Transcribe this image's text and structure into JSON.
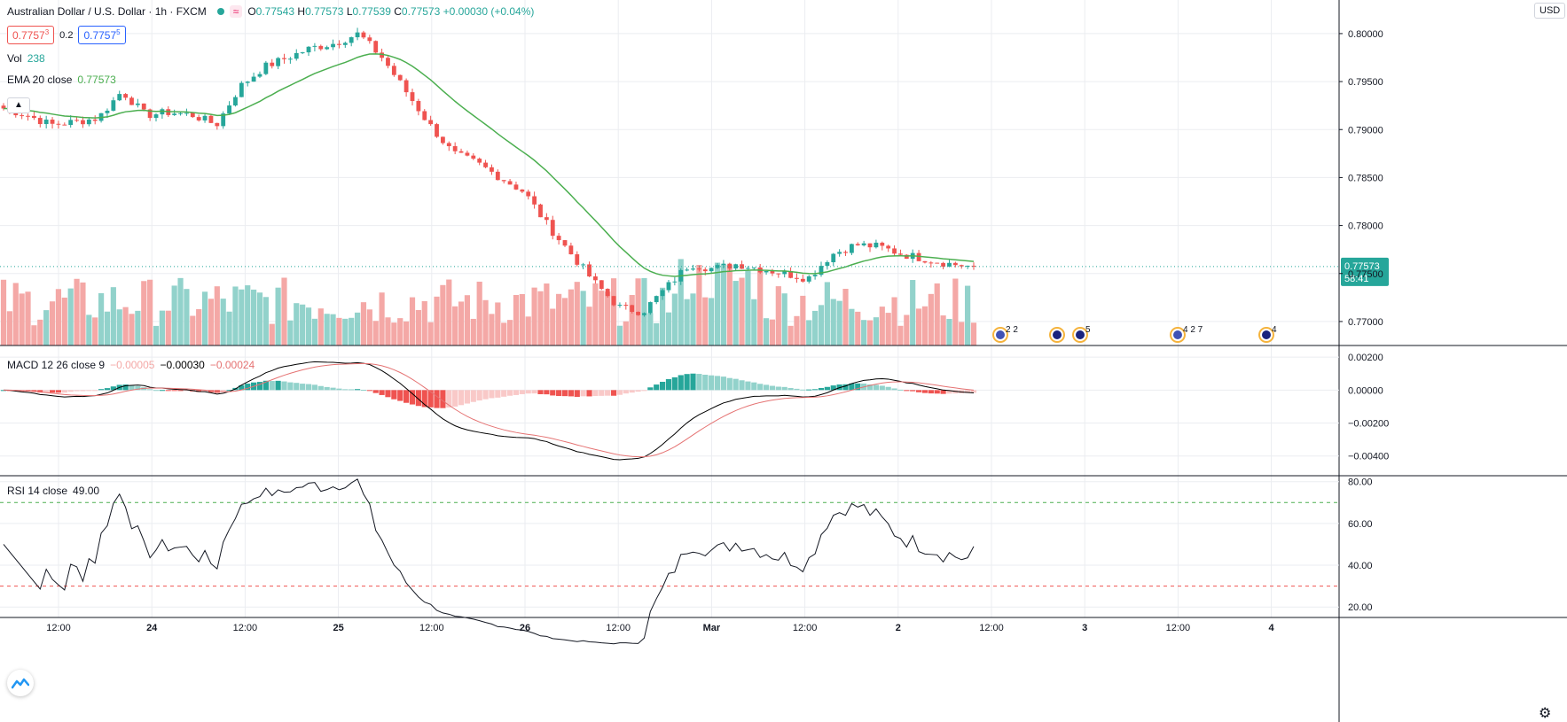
{
  "header": {
    "symbol": "Australian Dollar / U.S. Dollar · 1h · FXCM",
    "ohlc": {
      "o_label": "O",
      "o": "0.77543",
      "h_label": "H",
      "h": "0.77573",
      "l_label": "L",
      "l": "0.77539",
      "c_label": "C",
      "c": "0.77573",
      "change": "+0.00030 (+0.04%)"
    },
    "bid": "0.7757",
    "bid_sup": "3",
    "spread": "0.2",
    "ask": "0.7757",
    "ask_sup": "5",
    "currency_button": "USD",
    "indicator_badge": "≈"
  },
  "legends": {
    "vol": {
      "label": "Vol",
      "value": "238"
    },
    "ema": {
      "label": "EMA 20 close",
      "value": "0.77573"
    },
    "macd": {
      "label": "MACD 12 26 close 9",
      "hist": "−0.00005",
      "macd": "−0.00030",
      "signal": "−0.00024"
    },
    "rsi": {
      "label": "RSI 14 close",
      "value": "49.00"
    }
  },
  "colors": {
    "up": "#26a69a",
    "down": "#ef5350",
    "up_vol": "#92d2cb",
    "down_vol": "#f4a8a6",
    "ema": "#4caf50",
    "macd": "#000000",
    "signal": "#e57373",
    "grid": "#ebedf1",
    "text": "#131722"
  },
  "chart_data": {
    "type": "candlestick",
    "title": "Australian Dollar / U.S. Dollar · 1h · FXCM",
    "price_axis": {
      "ticks": [
        "0.80000",
        "0.79500",
        "0.79000",
        "0.78500",
        "0.78000",
        "0.77500",
        "0.77000"
      ],
      "ylim": [
        0.7675,
        0.8035
      ]
    },
    "last_price": {
      "value": "0.77573",
      "countdown": "58:41"
    },
    "time_axis": {
      "ticks": [
        "12:00",
        "24",
        "12:00",
        "25",
        "12:00",
        "26",
        "12:00",
        "Mar",
        "12:00",
        "2",
        "12:00",
        "3",
        "12:00",
        "4"
      ]
    },
    "anchors": [
      [
        0,
        0.7922
      ],
      [
        10,
        0.7915
      ],
      [
        20,
        0.7905
      ],
      [
        30,
        0.7908
      ],
      [
        40,
        0.7912
      ],
      [
        50,
        0.794
      ],
      [
        60,
        0.7915
      ],
      [
        70,
        0.7918
      ],
      [
        80,
        0.7915
      ],
      [
        90,
        0.7905
      ],
      [
        100,
        0.7945
      ],
      [
        110,
        0.7965
      ],
      [
        120,
        0.7975
      ],
      [
        130,
        0.7985
      ],
      [
        140,
        0.799
      ],
      [
        150,
        0.8
      ],
      [
        160,
        0.7975
      ],
      [
        170,
        0.794
      ],
      [
        180,
        0.7905
      ],
      [
        190,
        0.7875
      ],
      [
        200,
        0.7865
      ],
      [
        210,
        0.785
      ],
      [
        220,
        0.7835
      ],
      [
        230,
        0.78
      ],
      [
        240,
        0.777
      ],
      [
        250,
        0.774
      ],
      [
        260,
        0.7715
      ],
      [
        270,
        0.771
      ],
      [
        280,
        0.7735
      ],
      [
        290,
        0.776
      ],
      [
        300,
        0.7755
      ],
      [
        310,
        0.776
      ],
      [
        320,
        0.7755
      ],
      [
        330,
        0.775
      ],
      [
        340,
        0.7745
      ],
      [
        350,
        0.777
      ],
      [
        360,
        0.778
      ],
      [
        370,
        0.7778
      ],
      [
        380,
        0.777
      ],
      [
        390,
        0.7765
      ],
      [
        400,
        0.776
      ],
      [
        410,
        0.7757
      ]
    ],
    "num_candles": 160,
    "seed": 7,
    "ema_period": 20,
    "events": [
      {
        "kind": "us",
        "count": "2 2"
      },
      {
        "kind": "au",
        "count": ""
      },
      {
        "kind": "au",
        "count": "5"
      },
      {
        "kind": "us",
        "count": "4 2 7"
      },
      {
        "kind": "au",
        "count": "4"
      }
    ],
    "macd": {
      "ticks": [
        "0.00200",
        "0.00000",
        "−0.00200",
        "−0.00400"
      ],
      "ylim": [
        -0.0052,
        0.0026
      ]
    },
    "rsi": {
      "ticks": [
        "80.00",
        "60.00",
        "40.00",
        "20.00"
      ],
      "upper": 70,
      "lower": 30,
      "ylim": [
        15,
        82
      ]
    }
  }
}
